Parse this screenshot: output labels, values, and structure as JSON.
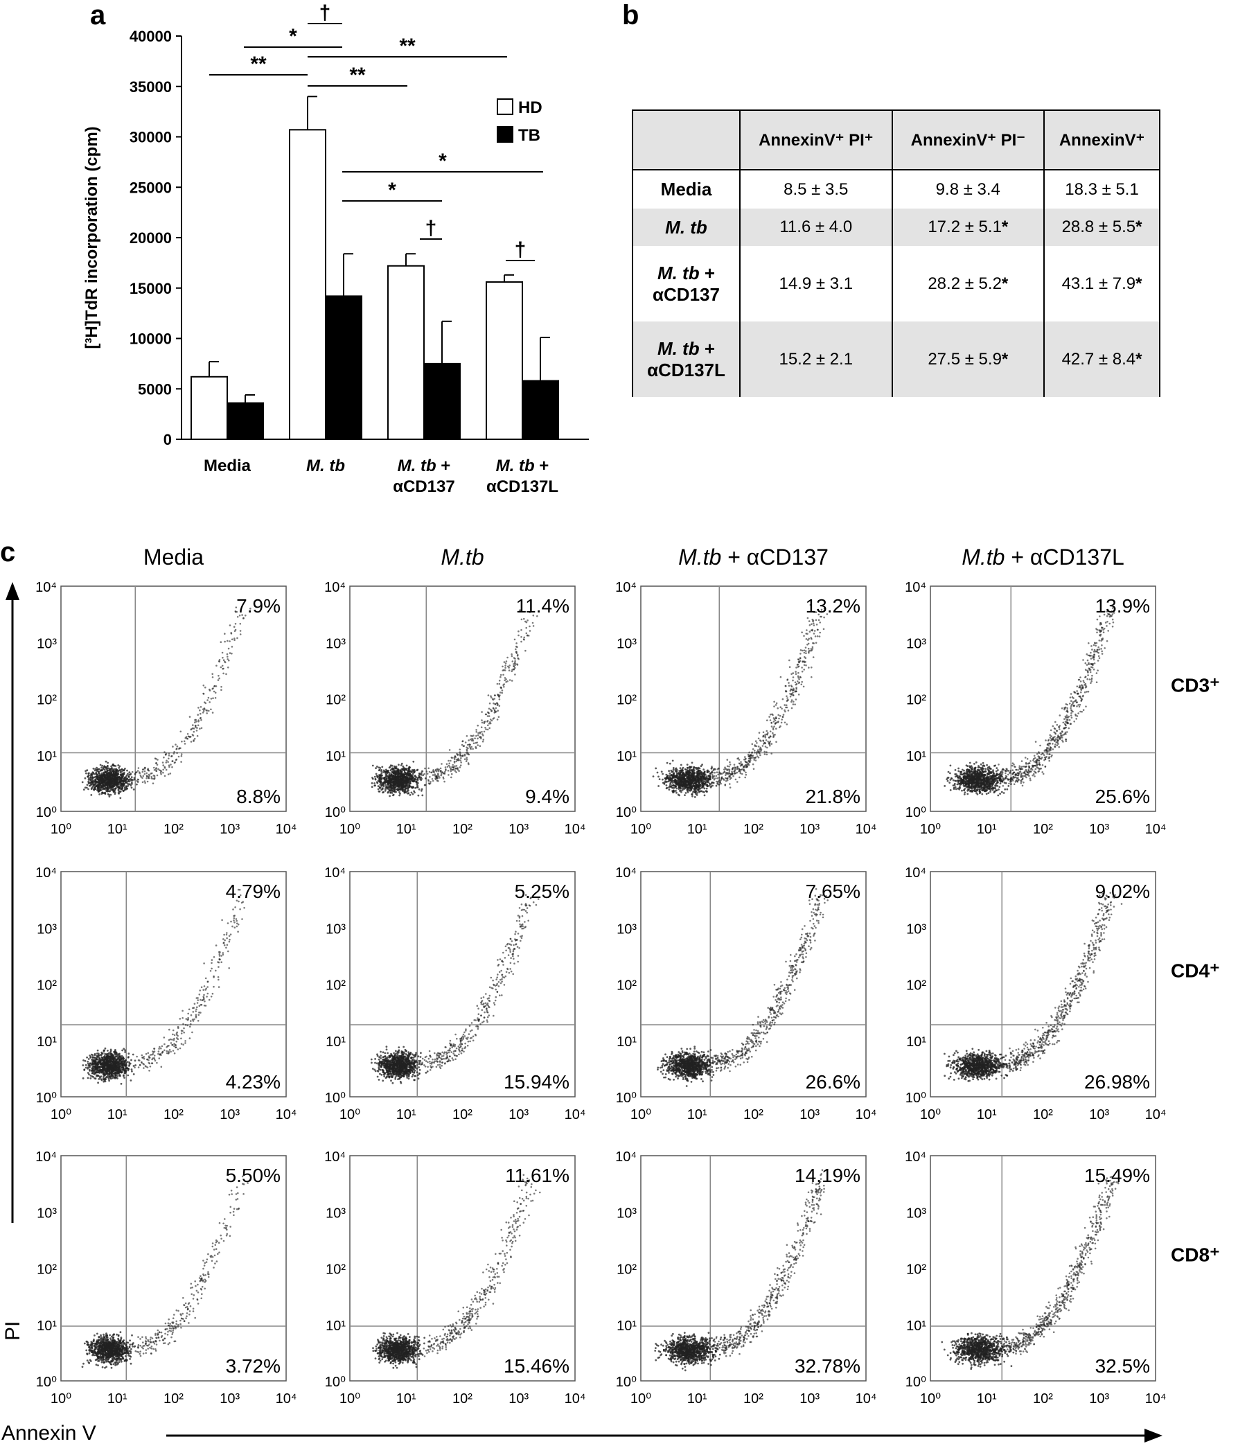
{
  "panel_labels": {
    "a": "a",
    "b": "b",
    "c": "c"
  },
  "chart_data": [
    {
      "type": "bar",
      "ylabel": "[³H]TdR incorporation (cpm)",
      "ylim": [
        0,
        40000
      ],
      "yticks": [
        0,
        5000,
        10000,
        15000,
        20000,
        25000,
        30000,
        35000,
        40000
      ],
      "categories": [
        "Media",
        "M. tb",
        "M. tb +\nαCD137",
        "M. tb +\nαCD137L"
      ],
      "series": [
        {
          "name": "HD",
          "color": "#ffffff",
          "values": [
            6200,
            30700,
            17200,
            15600
          ],
          "errors": [
            1500,
            3300,
            1200,
            700
          ]
        },
        {
          "name": "TB",
          "color": "#000000",
          "values": [
            3600,
            14200,
            7500,
            5800
          ],
          "errors": [
            800,
            4200,
            4200,
            4300
          ]
        }
      ],
      "legend": "top-right",
      "significance": [
        {
          "from": 0,
          "to": 1,
          "label": "**"
        },
        {
          "from": 1,
          "to": 2,
          "label": "**"
        },
        {
          "from": 1,
          "to": 3,
          "label": "**"
        },
        {
          "from": 1,
          "to": 1,
          "label": "†"
        },
        {
          "from": 0.5,
          "to": 1,
          "label": "*"
        },
        {
          "from": 1,
          "to": 2,
          "label": "*"
        },
        {
          "from": 1,
          "to": 3,
          "label": "*"
        },
        {
          "from": 2,
          "to": 2,
          "label": "†"
        },
        {
          "from": 3,
          "to": 3,
          "label": "†"
        }
      ]
    },
    {
      "type": "table",
      "columns": [
        "",
        "AnnexinV⁺ PI⁺",
        "AnnexinV⁺ PI⁻",
        "AnnexinV⁺"
      ],
      "rows": [
        {
          "label": "Media",
          "cells": [
            "8.5 ± 3.5",
            "9.8 ± 3.4",
            "18.3 ± 5.1"
          ],
          "stars": [
            false,
            false,
            false
          ]
        },
        {
          "label": "M. tb",
          "cells": [
            "11.6 ± 4.0",
            "17.2 ± 5.1",
            "28.8 ± 5.5"
          ],
          "stars": [
            false,
            true,
            true
          ]
        },
        {
          "label": "M. tb +\nαCD137",
          "cells": [
            "14.9 ± 3.1",
            "28.2 ± 5.2",
            "43.1 ± 7.9"
          ],
          "stars": [
            false,
            true,
            true
          ]
        },
        {
          "label": "M. tb +\nαCD137L",
          "cells": [
            "15.2 ± 2.1",
            "27.5 ± 5.9",
            "42.7 ± 8.4"
          ],
          "stars": [
            false,
            true,
            true
          ]
        }
      ],
      "star": "*"
    },
    {
      "type": "scatter",
      "xlabel": "Annexin V",
      "ylabel": "PI",
      "scale": "log",
      "axis_ticks": [
        "10⁰",
        "10¹",
        "10²",
        "10³",
        "10⁴"
      ],
      "columns": [
        "Media",
        "M.tb",
        "M.tb + αCD137",
        "M.tb + αCD137L"
      ],
      "rows": [
        "CD3⁺",
        "CD4⁺",
        "CD8⁺"
      ],
      "quadrant_percent": [
        [
          [
            "7.9%",
            "8.8%"
          ],
          [
            "11.4%",
            "9.4%"
          ],
          [
            "13.2%",
            "21.8%"
          ],
          [
            "13.9%",
            "25.6%"
          ]
        ],
        [
          [
            "4.79%",
            "4.23%"
          ],
          [
            "5.25%",
            "15.94%"
          ],
          [
            "7.65%",
            "26.6%"
          ],
          [
            "9.02%",
            "26.98%"
          ]
        ],
        [
          [
            "5.50%",
            "3.72%"
          ],
          [
            "11.61%",
            "15.46%"
          ],
          [
            "14,19%",
            "32.78%"
          ],
          [
            "15.49%",
            "32.5%"
          ]
        ]
      ]
    }
  ]
}
